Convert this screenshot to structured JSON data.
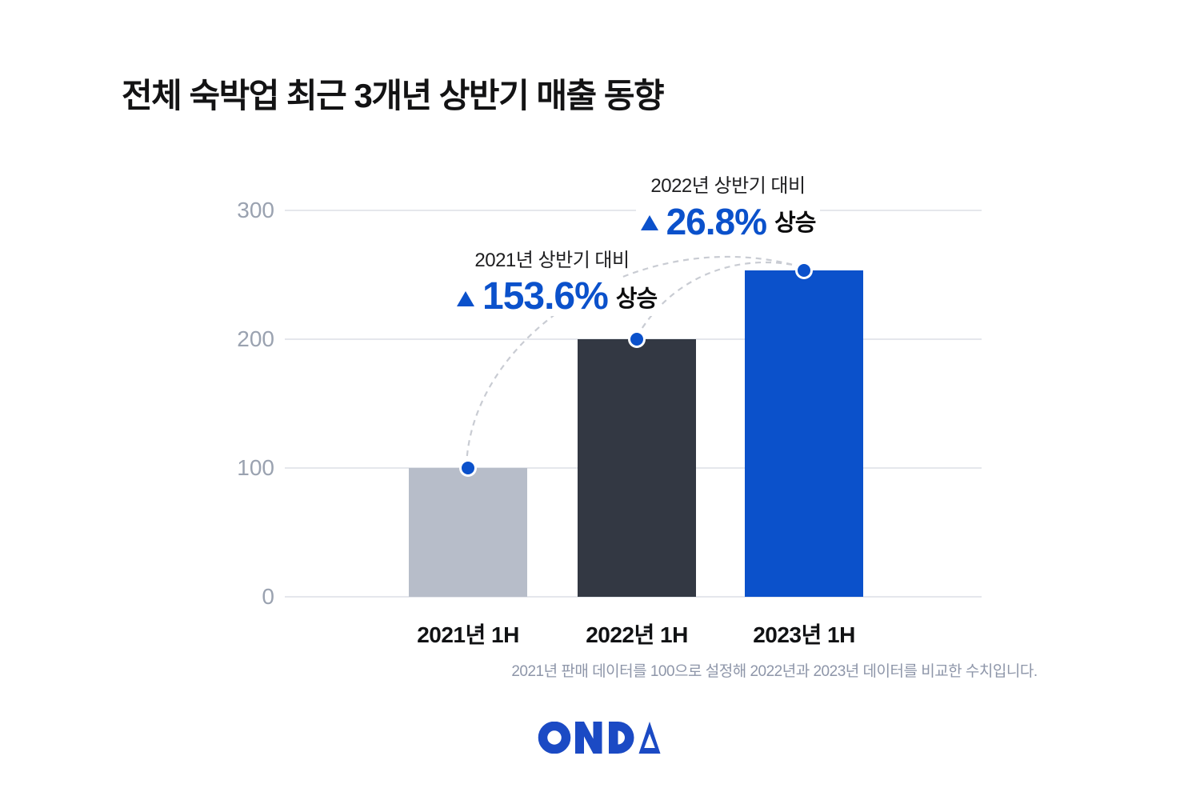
{
  "title": "전체 숙박업 최근 3개년 상반기 매출 동향",
  "chart_data": {
    "type": "bar",
    "categories": [
      "2021년 1H",
      "2022년 1H",
      "2023년 1H"
    ],
    "values": [
      100,
      200,
      253.6
    ],
    "bar_colors": [
      "#b7bdc9",
      "#333843",
      "#0b51cb"
    ],
    "title": "전체 숙박업 최근 3개년 상반기 매출 동향",
    "xlabel": "",
    "ylabel": "",
    "ylim": [
      0,
      300
    ],
    "yticks": [
      0,
      100,
      200,
      300
    ],
    "grid": true,
    "legend": "none",
    "marker_dots_on_bar_tops": true,
    "annotations": [
      {
        "label": "2021년 상반기 대비",
        "marker": "▲",
        "value": "153.6%",
        "suffix": "상승",
        "refers_to": "2023년 1H vs 2021년 1H"
      },
      {
        "label": "2022년 상반기 대비",
        "marker": "▲",
        "value": "26.8%",
        "suffix": "상승",
        "refers_to": "2023년 1H vs 2022년 1H"
      }
    ],
    "footnote": "2021년 판매 데이터를 100으로 설정해 2022년과 2023년 데이터를 비교한 수치입니다."
  },
  "branding": {
    "logo_text": "ONDA"
  },
  "colors": {
    "accent_blue": "#0b51cb",
    "bar_2021": "#b7bdc9",
    "bar_2022": "#333843",
    "bar_2023": "#0b51cb",
    "gridline": "#e5e7ec",
    "tick_text": "#9aa2b0",
    "axis_text": "#111214",
    "title_text": "#131314",
    "footnote_text": "#8e96a9",
    "curve_dash": "#c9ccd3",
    "logo_blue": "#1b4ac4"
  }
}
